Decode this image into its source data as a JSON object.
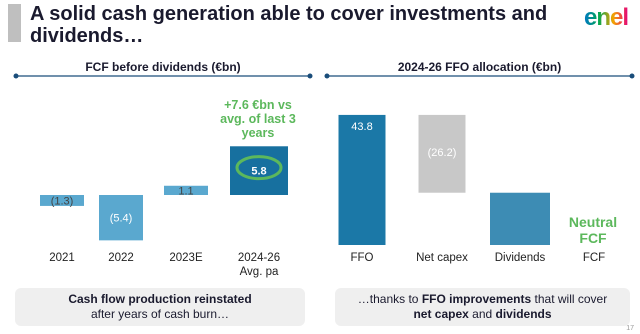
{
  "title": "A solid cash generation able to cover investments and dividends…",
  "logo": "enel",
  "page_number": "17",
  "chart_data": [
    {
      "type": "bar",
      "title": "FCF before dividends (€bn)",
      "categories": [
        "2021",
        "2022",
        "2023E",
        "2024-26 Avg. pa"
      ],
      "values": [
        -1.3,
        -5.4,
        1.1,
        5.8
      ],
      "value_labels": [
        "(1.3)",
        "(5.4)",
        "1.1",
        "5.8"
      ],
      "colors": [
        "#5aa8cf",
        "#5aa8cf",
        "#5aa8cf",
        "#17709f"
      ],
      "annotation": "+7.6 €bn vs avg. of last 3 years"
    },
    {
      "type": "waterfall",
      "title": "2024-26 FFO allocation (€bn)",
      "categories": [
        "FFO",
        "Net capex",
        "Dividends",
        "FCF"
      ],
      "values": [
        43.8,
        -26.2,
        -17.6,
        null
      ],
      "value_labels": [
        "43.8",
        "(26.2)",
        null,
        null
      ],
      "colors": [
        "#1b78a7",
        "#c8c8c8",
        "#1b78a7",
        null
      ],
      "annotation": "Neutral FCF"
    }
  ],
  "footer": {
    "left": [
      "Cash flow production reinstated",
      "after years of cash burn…"
    ],
    "right": [
      "…thanks to ",
      "FFO improvements",
      " that will cover",
      "net capex",
      " and ",
      "dividends"
    ]
  }
}
